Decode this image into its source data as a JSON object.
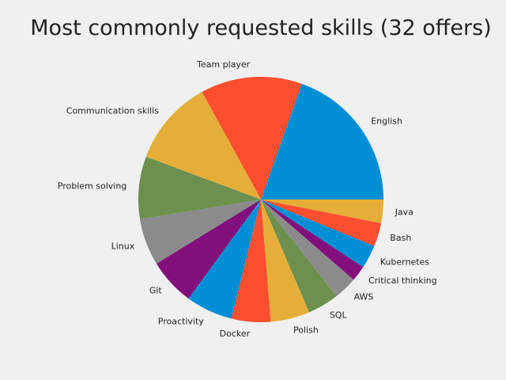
{
  "chart_data": {
    "type": "pie",
    "title": "Most commonly requested skills (32 offers)",
    "slices": [
      {
        "label": "English",
        "value": 19
      },
      {
        "label": "Team player",
        "value": 13
      },
      {
        "label": "Communication skills",
        "value": 11
      },
      {
        "label": "Problem solving",
        "value": 8
      },
      {
        "label": "Linux",
        "value": 6
      },
      {
        "label": "Git",
        "value": 6
      },
      {
        "label": "Proactivity",
        "value": 6
      },
      {
        "label": "Docker",
        "value": 5
      },
      {
        "label": "Polish",
        "value": 5
      },
      {
        "label": "SQL",
        "value": 4
      },
      {
        "label": "AWS",
        "value": 3
      },
      {
        "label": "Critical thinking",
        "value": 2
      },
      {
        "label": "Kubernetes",
        "value": 3
      },
      {
        "label": "Bash",
        "value": 3
      },
      {
        "label": "Java",
        "value": 3
      }
    ],
    "colors": [
      "#008fd5",
      "#fc4f30",
      "#e5ae38",
      "#6d904f",
      "#8b8b8b",
      "#810f7c"
    ],
    "start_angle_deg": 0,
    "direction": "counterclockwise"
  }
}
